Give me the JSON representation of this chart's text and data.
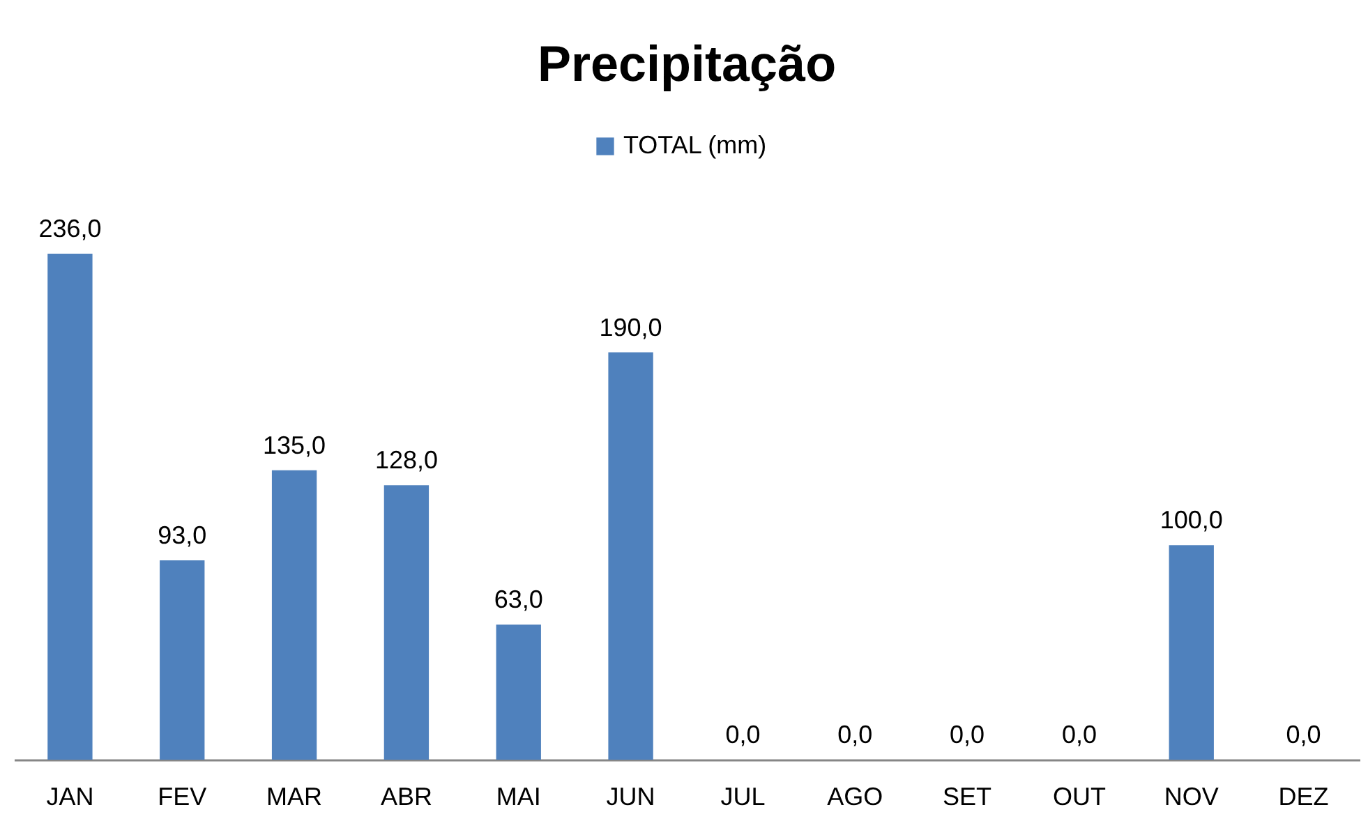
{
  "chart_data": {
    "type": "bar",
    "title": "Precipitação",
    "categories": [
      "JAN",
      "FEV",
      "MAR",
      "ABR",
      "MAI",
      "JUN",
      "JUL",
      "AGO",
      "SET",
      "OUT",
      "NOV",
      "DEZ"
    ],
    "series": [
      {
        "name": "TOTAL (mm)",
        "color": "#4f81bd",
        "values": [
          236,
          93,
          135,
          128,
          63,
          190,
          0,
          0,
          0,
          0,
          100,
          0
        ],
        "value_labels": [
          "236,0",
          "93,0",
          "135,0",
          "128,0",
          "63,0",
          "190,0",
          "0,0",
          "0,0",
          "0,0",
          "0,0",
          "100,0",
          "0,0"
        ]
      }
    ],
    "legend": "top",
    "grid": false
  }
}
